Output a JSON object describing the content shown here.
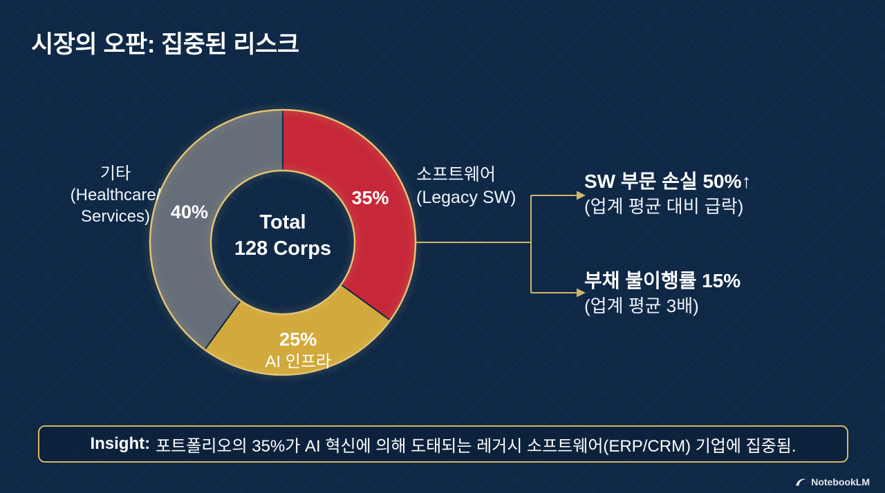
{
  "page": {
    "title": "시장의 오판: 집중된 리스크"
  },
  "chart_data": {
    "type": "pie",
    "donut": true,
    "title": "시장의 오판: 집중된 리스크",
    "center_line1": "Total",
    "center_line2": "128 Corps",
    "start_angle_deg": 0,
    "direction": "clockwise",
    "segments": [
      {
        "label": "소프트웨어 (Legacy SW)",
        "pct_label": "35%",
        "value": 35,
        "color": "#c62839"
      },
      {
        "label": "AI 인프라",
        "pct_label": "25%",
        "value": 25,
        "color": "#d2a93c",
        "sub_label": "AI 인프라"
      },
      {
        "label": "기타 (Healthcare/Services)",
        "pct_label": "40%",
        "value": 40,
        "color": "#666e79"
      }
    ],
    "annotations": [
      "SW 부문 손실 50%↑ (업계 평균 대비 급락)",
      "부채 불이행률 15% (업계 평균 3배)"
    ]
  },
  "labels": {
    "left": {
      "line1": "기타",
      "line2": "(Healthcare/",
      "line3": "Services)"
    },
    "right": {
      "line1": "소프트웨어",
      "line2": "(Legacy SW)"
    }
  },
  "callouts": [
    {
      "title": "SW 부문 손실 50%↑",
      "subtitle": "(업계 평균 대비 급락)"
    },
    {
      "title": "부채 불이행률 15%",
      "subtitle": "(업계 평균 3배)"
    }
  ],
  "insight": {
    "label": "Insight:",
    "text": "포트폴리오의 35%가 AI 혁신에 의해 도태되는 레거시 소프트웨어(ERP/CRM) 기업에 집중됨."
  },
  "footer": {
    "brand": "NotebookLM"
  },
  "colors": {
    "background": "#0e2846",
    "accent_gold": "#d9bd6e",
    "segment_red": "#c62839",
    "segment_gold": "#d2a93c",
    "segment_gray": "#666e79",
    "text": "#ffffff"
  }
}
